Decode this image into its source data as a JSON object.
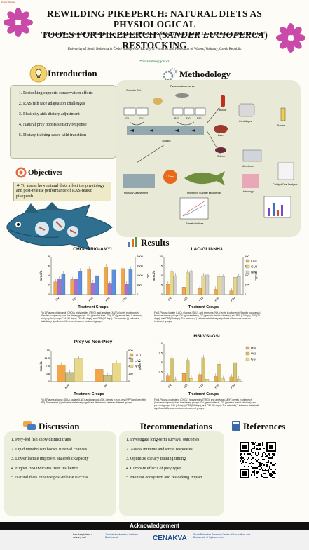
{
  "corner_tag": "Poster Abstract",
  "header": {
    "title_line1": "REWILDING PIKEPERCH: NATURAL DIETS AS PHYSIOLOGICAL",
    "title_line2a": "TOOLS FOR PIKEPERCH (",
    "title_line2_italic": "SANDER LUCIOPERCA",
    "title_line2b": ") RESTOCKING",
    "authors": "Nauman Muhammad¹·*, Malinovskyi Oleksandr¹·Václav Kučera¹, Tomáš Pěnka¹, Laura Ostolaza¹, Jitka Kolářová¹",
    "affiliation": "¹University of South Bohemia in České Budějovice, Faculty of Fisheries and Protection of Waters, Vodnany, Czech Republic.",
    "email": "*mnauman@jcu.cz",
    "accent_color": "#1a7a3a",
    "flower_color": "#c94aa8"
  },
  "introduction": {
    "title": "Introduction",
    "items": [
      "Restocking supports conservation efforts",
      "RAS fish face adaptation challenges",
      "Plasticity aids dietary adjustment",
      "Natural prey boosts sensory response",
      "Dietary training eases wild transition"
    ]
  },
  "objective": {
    "title": "Objective:",
    "text": "To assess how natural diets affect the physiology and post-release performance of RAS-reared pikeperch"
  },
  "methodology": {
    "title": "Methodology",
    "labels": {
      "granular_diet": "Granular Diet",
      "pseudorasbora": "Pseudorasbora parva",
      "groups_left": [
        "GV",
        "GD"
      ],
      "groups_right": [
        "P10",
        "P20",
        "P30"
      ],
      "days": "30 days",
      "mortality": "Mortality Assessment",
      "one_days": "1 Days",
      "pikeperch": "Pikeperch (Sander lucioperca)",
      "somatic": "Somatic Indices",
      "blood": "Blood",
      "centrifuges": "Centrifuges",
      "plasma": "Plasma",
      "liver": "Liver",
      "spleen": "Spleen",
      "microtome": "Microtome",
      "histology": "Histology",
      "analyzer": "Catalyst One Analyzer"
    }
  },
  "results": {
    "title": "Results",
    "x_axis_label": "Treatment Groups",
    "captions": [
      "Fig 1-Plasma cholesterol (CHOL), triglycerides (TRIG), and amylase (AMYL) levels in pikeperch (Sander lucioperca) from five dietary groups: GV (granular feed, GV), GD (granular feed + vitamins), and prey-fed groups P10 (10 days), P20 (20 days), and P30 (30 days). The asterisk (*) indicates statistically significant differences between treatment groups.",
      "Fig 2-Plasma lactate (LAC), glucose (GLU), and ammonia (NH₃) levels in pikeperch (Sander lucioperca) from five dietary groups: GV (granular feed), GD (granular feed + vitamins), and P10 (10 days), P20 (20 days), and P30 (30 days). The asterisk (*) indicates statistically significant differences between treatment groups.",
      "Fig 3-Plasma glucose (GLU), lactate (LAC), and ammonia (NH₃) levels in non-prey (NPF) and prey fish (PF).The asterisk (*) indicates statistically significant differences between different groups.",
      "Fig 4-Plasma cholesterol (CHOL), triglycerides (TRIG), and amylase (AMYL) levels in pikeperch (Sander lucioperca) from five dietary groups: GV (granular feed), GD (granular feed + vitamins), and prey-fed groups P10 (10 days), P20 (20 days), and P30 (30 days). The asterisk (*) indicates statistically significant differences between treatment groups."
    ]
  },
  "chart_data": [
    {
      "type": "bar",
      "title": "CHOL-TRIG-AMYL",
      "categories": [
        "GV",
        "GD",
        "P10",
        "P20",
        "P30"
      ],
      "xlabel": "Treatment Groups",
      "ylabel": "mmol/L",
      "y2label": "U/L",
      "ylim": [
        0,
        8
      ],
      "y2lim": [
        0,
        2000
      ],
      "series": [
        {
          "values": [
            2.7,
            3.2,
            5.4,
            5.9,
            5.5
          ],
          "color": "#f2a64a"
        },
        {
          "values": [
            3.3,
            3.3,
            2.5,
            2.3,
            2.2
          ],
          "color": "#a86fd0"
        },
        {
          "values": [
            1100,
            1250,
            1000,
            1300,
            1350
          ],
          "color": "#5b8fe0"
        }
      ]
    },
    {
      "type": "bar",
      "title": "LAC-GLU-NH3",
      "categories": [
        "GV",
        "GD",
        "P10",
        "P20",
        "P30"
      ],
      "xlabel": "Treatment Groups",
      "ylabel": "mmol/L",
      "y2label": "µmol/L",
      "ylim": [
        0,
        20
      ],
      "y2lim": [
        0,
        500
      ],
      "series": [
        {
          "name": "LAC",
          "values": [
            5.5,
            4.0,
            3.2,
            2.8,
            2.0
          ],
          "color": "#f2a64a"
        },
        {
          "name": "GLU",
          "values": [
            12.0,
            11.5,
            10.0,
            9.5,
            9.2
          ],
          "color": "#e8d88a"
        },
        {
          "name": "NH3",
          "values": [
            250,
            300,
            260,
            240,
            240
          ],
          "color": "#cfcfcf"
        }
      ]
    },
    {
      "type": "bar",
      "title": "Prey vs Non-Prey",
      "categories": [
        "NPF",
        "PF"
      ],
      "xlabel": "Treatment Groups",
      "ylabel": "mmol/L",
      "y2label": "µmol/L",
      "ylim": [
        0,
        15
      ],
      "y2lim": [
        0,
        600
      ],
      "series": [
        {
          "name": "GLU",
          "values": [
            8.0,
            6.0
          ],
          "color": "#f2a64a"
        },
        {
          "name": "LAC",
          "values": [
            4.5,
            3.0
          ],
          "color": "#c8c080"
        },
        {
          "name": "NH3",
          "values": [
            440,
            360
          ],
          "color": "#e8d88a"
        }
      ]
    },
    {
      "type": "bar",
      "title": "HSI-VSI-GSI",
      "categories": [
        "GV",
        "GD",
        "P10",
        "P20",
        "P30"
      ],
      "xlabel": "Treatment Groups",
      "ylim": [
        0,
        10
      ],
      "series": [
        {
          "name": "HSI",
          "values": [
            1.5,
            2.2,
            1.9,
            1.4,
            1.3
          ],
          "color": "#f2a64a"
        },
        {
          "name": "VSI",
          "values": [
            6.0,
            5.6,
            6.3,
            4.6,
            5.0
          ],
          "color": "#d6c46a"
        },
        {
          "name": "GSI",
          "values": [
            0.6,
            0.9,
            0.7,
            0.8,
            0.7
          ],
          "color": "#e8d88a"
        }
      ]
    }
  ],
  "discussion": {
    "title": "Discussion",
    "items": [
      "Prey-fed fish show distinct traits",
      "Lipid metabolism boosts survival chances",
      "Lower lactate improves anaerobic capacity",
      "Higher HSI indicates liver resilience",
      "Natural diets enhance post-release success"
    ]
  },
  "recommendations": {
    "title": "Recommendations",
    "items": [
      "Investigate long-term survival outcomes",
      "Assess immune and stress responses",
      "Optimize dietary training timing",
      "Compare effects of prey types",
      "Monitor ecosystem and restocking impact"
    ]
  },
  "references": {
    "title": "References"
  },
  "acknowledgement": {
    "title": "Acknowledgement",
    "logo1": "Fakulta rybářství a ochrany vod",
    "logo2": "Jihočeská univerzita v Českých Budějovicích",
    "logo3": "CENAKVA",
    "logo4": "South Bohemian Research Center of Aquaculture and Biodiversity of Hydrocenoses"
  }
}
